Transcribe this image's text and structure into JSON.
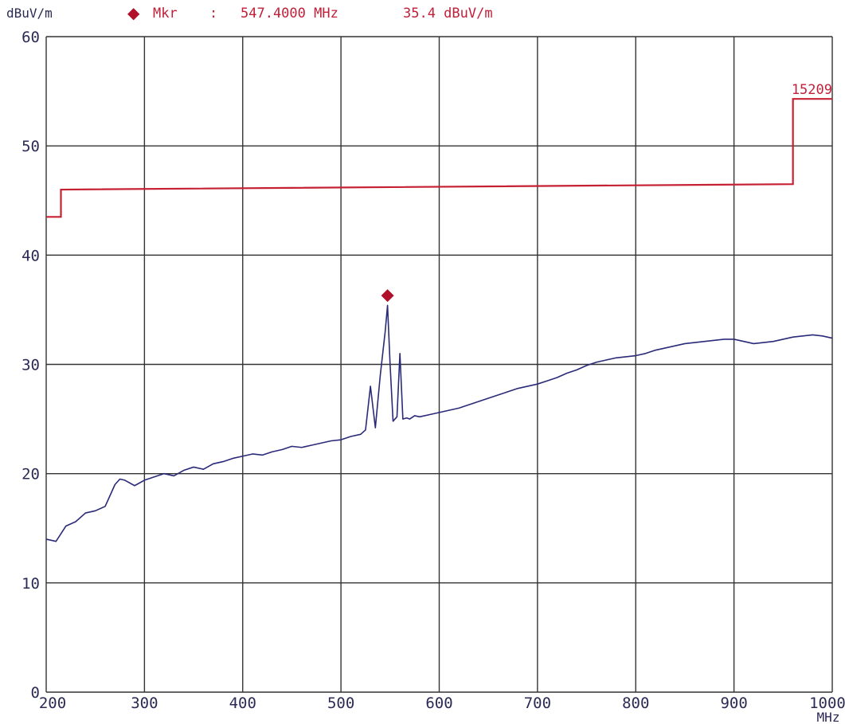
{
  "header": {
    "y_unit": "dBuV/m",
    "marker_symbol": "◆",
    "marker_label": "Mkr",
    "marker_sep": ":",
    "marker_freq": "547.4000 MHz",
    "marker_level": "35.4 dBuV/m"
  },
  "colors": {
    "limit": "#c62033",
    "trace": "#2b2a78",
    "marker": "#b0102a",
    "grid": "#333333",
    "text": "#2a2a55"
  },
  "chart_data": {
    "type": "line",
    "title": "",
    "xlabel": "MHz",
    "ylabel": "dBuV/m",
    "xlim": [
      200,
      1000
    ],
    "ylim": [
      0,
      60
    ],
    "x_ticks": [
      200,
      300,
      400,
      500,
      600,
      700,
      800,
      900,
      1000
    ],
    "y_ticks": [
      0,
      10,
      20,
      30,
      40,
      50,
      60
    ],
    "grid": true,
    "series": [
      {
        "name": "15209",
        "role": "limit",
        "x": [
          200,
          215,
          215,
          960,
          960,
          1000
        ],
        "y": [
          43.5,
          43.5,
          46.0,
          46.5,
          54.3,
          54.3
        ]
      },
      {
        "role": "measurement",
        "x": [
          200,
          210,
          220,
          230,
          240,
          250,
          260,
          270,
          275,
          280,
          290,
          300,
          310,
          320,
          330,
          340,
          350,
          360,
          370,
          380,
          390,
          400,
          410,
          420,
          430,
          440,
          450,
          460,
          470,
          480,
          490,
          500,
          510,
          520,
          525,
          530,
          535,
          540,
          545,
          547.4,
          550,
          553,
          557,
          560,
          563,
          567,
          570,
          575,
          580,
          590,
          600,
          610,
          620,
          630,
          640,
          650,
          660,
          670,
          680,
          690,
          700,
          710,
          720,
          730,
          740,
          750,
          760,
          770,
          780,
          790,
          800,
          810,
          820,
          830,
          840,
          850,
          860,
          870,
          880,
          890,
          900,
          910,
          920,
          930,
          940,
          950,
          960,
          970,
          980,
          990,
          1000
        ],
        "y": [
          14.0,
          13.8,
          15.2,
          15.6,
          16.4,
          16.6,
          17.0,
          19.0,
          19.5,
          19.4,
          18.9,
          19.4,
          19.7,
          20.0,
          19.8,
          20.3,
          20.6,
          20.4,
          20.9,
          21.1,
          21.4,
          21.6,
          21.8,
          21.7,
          22.0,
          22.2,
          22.5,
          22.4,
          22.6,
          22.8,
          23.0,
          23.1,
          23.4,
          23.6,
          24.0,
          28.0,
          24.2,
          29.0,
          33.0,
          35.4,
          30.0,
          24.8,
          25.2,
          31.0,
          25.0,
          25.1,
          25.0,
          25.3,
          25.2,
          25.4,
          25.6,
          25.8,
          26.0,
          26.3,
          26.6,
          26.9,
          27.2,
          27.5,
          27.8,
          28.0,
          28.2,
          28.5,
          28.8,
          29.2,
          29.5,
          29.9,
          30.2,
          30.4,
          30.6,
          30.7,
          30.8,
          31.0,
          31.3,
          31.5,
          31.7,
          31.9,
          32.0,
          32.1,
          32.2,
          32.3,
          32.3,
          32.1,
          31.9,
          32.0,
          32.1,
          32.3,
          32.5,
          32.6,
          32.7,
          32.6,
          32.4
        ]
      }
    ],
    "marker": {
      "x": 547.4,
      "y": 36.3
    },
    "annotations": [
      "15209"
    ]
  }
}
